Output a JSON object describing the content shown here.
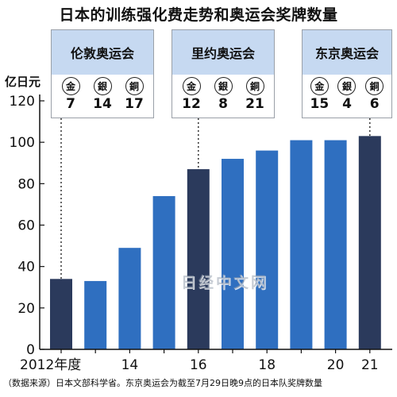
{
  "title": "日本的训练强化费走势和奥运会奖牌数量",
  "unit": "亿日元",
  "panels": [
    {
      "name": "伦敦奥运会",
      "medals": [
        {
          "label": "金",
          "count": "7"
        },
        {
          "label": "銀",
          "count": "14"
        },
        {
          "label": "銅",
          "count": "17"
        }
      ]
    },
    {
      "name": "里约奥运会",
      "medals": [
        {
          "label": "金",
          "count": "12"
        },
        {
          "label": "銀",
          "count": "8"
        },
        {
          "label": "銅",
          "count": "21"
        }
      ]
    },
    {
      "name": "东京奥运会",
      "medals": [
        {
          "label": "金",
          "count": "15"
        },
        {
          "label": "銀",
          "count": "4"
        },
        {
          "label": "銅",
          "count": "6"
        }
      ]
    }
  ],
  "watermark": "日经中文网",
  "source": "（数据来源）日本文部科学省。东京奥运会为截至7月29日晚9点的日本队奖牌数量",
  "colors": {
    "olympic_bar": "#2b3a5c",
    "regular_bar": "#2f6fc0",
    "panel_header": "#c6d9f1"
  },
  "chart_data": {
    "type": "bar",
    "title": "日本的训练强化费走势和奥运会奖牌数量",
    "ylabel": "亿日元",
    "ylim": [
      0,
      120
    ],
    "yticks": [
      0,
      20,
      40,
      60,
      80,
      100,
      120
    ],
    "categories": [
      "2012",
      "2013",
      "2014",
      "2015",
      "2016",
      "2017",
      "2018",
      "2019",
      "2020",
      "2021"
    ],
    "values": [
      34,
      33,
      49,
      74,
      87,
      92,
      96,
      101,
      101,
      103
    ],
    "olympic_years": [
      "2012",
      "2016",
      "2021"
    ],
    "xtick_labels": [
      {
        "category": "2012",
        "label": "2012年度"
      },
      {
        "category": "2014",
        "label": "14"
      },
      {
        "category": "2016",
        "label": "16"
      },
      {
        "category": "2018",
        "label": "18"
      },
      {
        "category": "2020",
        "label": "20"
      },
      {
        "category": "2021",
        "label": "21"
      }
    ],
    "grid": false
  }
}
